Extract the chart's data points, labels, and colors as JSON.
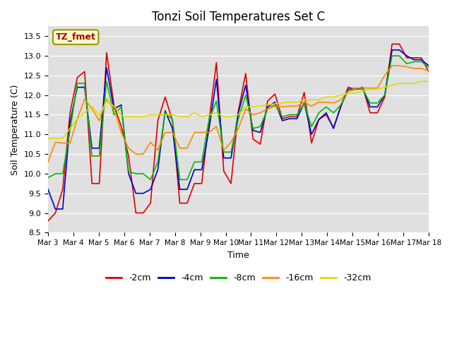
{
  "title": "Tonzi Soil Temperatures Set C",
  "xlabel": "Time",
  "ylabel": "Soil Temperature (C)",
  "ylim": [
    8.5,
    13.75
  ],
  "xlim": [
    0,
    15
  ],
  "x_tick_labels": [
    "Mar 3",
    "Mar 4",
    "Mar 5",
    "Mar 6",
    "Mar 7",
    "Mar 8",
    "Mar 9",
    "Mar 10",
    "Mar 11",
    "Mar 12",
    "Mar 13",
    "Mar 14",
    "Mar 15",
    "Mar 16",
    "Mar 17",
    "Mar 18"
  ],
  "legend_labels": [
    "-2cm",
    "-4cm",
    "-8cm",
    "-16cm",
    "-32cm"
  ],
  "line_colors": [
    "#dd0000",
    "#0000cc",
    "#00bb00",
    "#ff8800",
    "#dddd00"
  ],
  "line_widths": [
    1.2,
    1.2,
    1.2,
    1.2,
    1.2
  ],
  "bg_color": "#e0e0e0",
  "grid_color": "#ffffff",
  "annotation_text": "TZ_fmet",
  "annotation_bg": "#ffffcc",
  "annotation_border": "#999900",
  "annotation_text_color": "#aa0000",
  "series_2cm": [
    8.8,
    9.0,
    9.6,
    11.55,
    12.45,
    12.6,
    9.75,
    9.75,
    13.08,
    11.75,
    11.2,
    10.45,
    9.0,
    9.0,
    9.25,
    11.35,
    11.95,
    11.35,
    9.25,
    9.25,
    9.75,
    9.75,
    11.35,
    12.83,
    10.07,
    9.75,
    11.6,
    12.55,
    10.88,
    10.75,
    11.85,
    12.03,
    11.4,
    11.45,
    11.45,
    12.07,
    10.78,
    11.38,
    11.5,
    11.17,
    11.7,
    12.2,
    12.15,
    12.2,
    11.55,
    11.55,
    11.95,
    13.3,
    13.3,
    12.95,
    12.95,
    12.95,
    12.6
  ],
  "series_4cm": [
    9.6,
    9.1,
    9.1,
    11.3,
    12.2,
    12.2,
    10.65,
    10.65,
    12.7,
    11.65,
    11.75,
    10.0,
    9.5,
    9.5,
    9.6,
    10.1,
    11.6,
    11.15,
    9.6,
    9.6,
    10.1,
    10.1,
    11.15,
    12.4,
    10.4,
    10.4,
    11.55,
    12.25,
    11.1,
    11.05,
    11.7,
    11.82,
    11.35,
    11.4,
    11.4,
    11.8,
    11.0,
    11.38,
    11.55,
    11.15,
    11.72,
    12.15,
    12.15,
    12.18,
    11.7,
    11.7,
    12.0,
    13.15,
    13.15,
    13.0,
    12.9,
    12.9,
    12.75
  ],
  "series_8cm": [
    9.9,
    10.0,
    10.0,
    11.1,
    12.3,
    12.3,
    10.45,
    10.45,
    12.35,
    11.5,
    11.7,
    10.05,
    10.0,
    10.0,
    9.85,
    10.3,
    11.55,
    11.38,
    9.85,
    9.85,
    10.3,
    10.3,
    11.38,
    11.85,
    10.55,
    10.55,
    11.4,
    12.0,
    11.15,
    11.2,
    11.65,
    11.75,
    11.45,
    11.5,
    11.5,
    11.78,
    11.2,
    11.55,
    11.7,
    11.55,
    11.75,
    12.1,
    12.15,
    12.15,
    11.8,
    11.8,
    12.0,
    13.0,
    13.0,
    12.8,
    12.85,
    12.85,
    12.72
  ],
  "series_16cm": [
    10.3,
    10.8,
    10.78,
    10.78,
    11.4,
    11.9,
    11.65,
    11.35,
    11.9,
    11.65,
    11.05,
    10.65,
    10.5,
    10.5,
    10.8,
    10.6,
    11.05,
    11.05,
    10.65,
    10.65,
    11.05,
    11.05,
    11.05,
    11.2,
    10.6,
    10.8,
    11.15,
    11.65,
    11.5,
    11.55,
    11.65,
    11.72,
    11.7,
    11.72,
    11.72,
    11.82,
    11.72,
    11.82,
    11.82,
    11.8,
    11.88,
    12.1,
    12.18,
    12.18,
    12.18,
    12.18,
    12.5,
    12.75,
    12.75,
    12.72,
    12.68,
    12.68,
    12.62
  ],
  "series_32cm": [
    10.9,
    10.9,
    10.9,
    11.15,
    11.4,
    11.55,
    11.72,
    11.48,
    11.85,
    11.72,
    11.48,
    11.45,
    11.45,
    11.45,
    11.5,
    11.5,
    11.5,
    11.5,
    11.45,
    11.45,
    11.55,
    11.45,
    11.5,
    11.55,
    11.45,
    11.45,
    11.5,
    11.7,
    11.7,
    11.72,
    11.75,
    11.78,
    11.8,
    11.82,
    11.82,
    11.88,
    11.88,
    11.88,
    11.95,
    11.95,
    12.0,
    12.05,
    12.05,
    12.1,
    12.15,
    12.15,
    12.2,
    12.25,
    12.3,
    12.3,
    12.3,
    12.35,
    12.35
  ]
}
